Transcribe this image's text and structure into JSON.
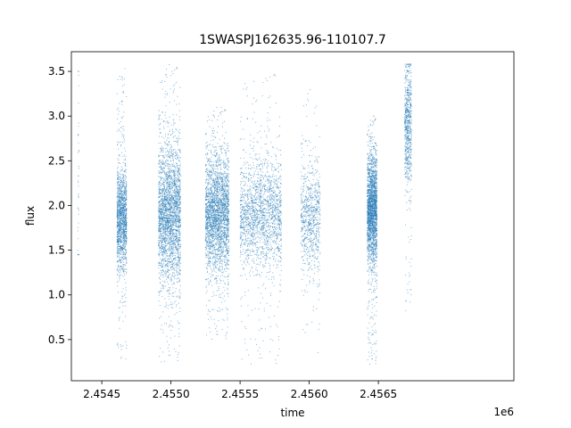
{
  "chart_data": {
    "type": "scatter",
    "title": "1SWASPJ162635.96-110107.7",
    "xlabel": "time",
    "ylabel": "flux",
    "x_offset_label": "1e6",
    "xlim": [
      2454280,
      2457480
    ],
    "ylim": [
      0.04,
      3.72
    ],
    "x_ticks": [
      2454500,
      2455000,
      2455500,
      2456000,
      2456500
    ],
    "x_tick_labels": [
      "2.4545",
      "2.4550",
      "2.4555",
      "2.4560",
      "2.4565"
    ],
    "y_ticks": [
      0.5,
      1.0,
      1.5,
      2.0,
      2.5,
      3.0,
      3.5
    ],
    "y_tick_labels": [
      "0.5",
      "1.0",
      "1.5",
      "2.0",
      "2.5",
      "3.0",
      "3.5"
    ],
    "grid": false,
    "marker_color": "#1f77b4",
    "series": [
      {
        "name": "",
        "segments": [
          {
            "x_start": 2454327,
            "x_end": 2454335,
            "flux_center": 2.5,
            "flux_spread": 1.0,
            "flux_min": 1.45,
            "flux_max": 3.5,
            "points": 40
          },
          {
            "x_start": 2454610,
            "x_end": 2454680,
            "flux_center": 1.85,
            "flux_spread": 0.28,
            "flux_min": 0.27,
            "flux_max": 3.55,
            "points": 1400
          },
          {
            "x_start": 2454910,
            "x_end": 2455070,
            "flux_center": 1.9,
            "flux_spread": 0.38,
            "flux_min": 0.25,
            "flux_max": 3.58,
            "points": 2600
          },
          {
            "x_start": 2455250,
            "x_end": 2455420,
            "flux_center": 1.9,
            "flux_spread": 0.32,
            "flux_min": 0.5,
            "flux_max": 3.1,
            "points": 2600
          },
          {
            "x_start": 2455500,
            "x_end": 2455800,
            "flux_center": 1.9,
            "flux_spread": 0.3,
            "flux_min": 0.22,
            "flux_max": 3.5,
            "points": 1900
          },
          {
            "x_start": 2455940,
            "x_end": 2456080,
            "flux_center": 1.85,
            "flux_spread": 0.3,
            "flux_min": 0.28,
            "flux_max": 3.3,
            "points": 800
          },
          {
            "x_start": 2456420,
            "x_end": 2456490,
            "flux_center": 1.95,
            "flux_spread": 0.3,
            "flux_min": 0.22,
            "flux_max": 3.0,
            "points": 2200
          },
          {
            "x_start": 2456690,
            "x_end": 2456740,
            "flux_center": 2.9,
            "flux_spread": 0.35,
            "flux_min": 0.68,
            "flux_max": 3.58,
            "points": 700
          }
        ]
      }
    ]
  }
}
